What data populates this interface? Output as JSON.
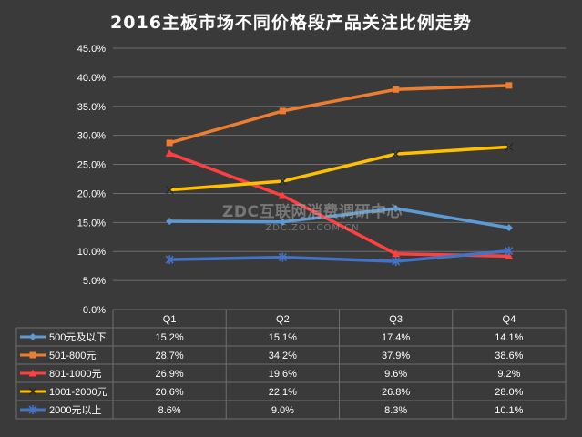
{
  "chart_data": {
    "type": "line",
    "title": "2016主板市场不同价格段产品关注比例走势",
    "categories": [
      "Q1",
      "Q2",
      "Q3",
      "Q4"
    ],
    "ylim": [
      0,
      45
    ],
    "yticks": [
      "0.0%",
      "5.0%",
      "10.0%",
      "15.0%",
      "20.0%",
      "25.0%",
      "30.0%",
      "35.0%",
      "40.0%",
      "45.0%"
    ],
    "grid": true,
    "legend_placement": "bottom-table",
    "series": [
      {
        "name": "500元及以下",
        "values": [
          15.2,
          15.1,
          17.4,
          14.1
        ],
        "labels": [
          "15.2%",
          "15.1%",
          "17.4%",
          "14.1%"
        ],
        "color": "#5b9bd5",
        "marker": "diamond"
      },
      {
        "name": "501-800元",
        "values": [
          28.7,
          34.2,
          37.9,
          38.6
        ],
        "labels": [
          "28.7%",
          "34.2%",
          "37.9%",
          "38.6%"
        ],
        "color": "#ed7d31",
        "marker": "square"
      },
      {
        "name": "801-1000元",
        "values": [
          26.9,
          19.6,
          9.6,
          9.2
        ],
        "labels": [
          "26.9%",
          "19.6%",
          "9.6%",
          "9.2%"
        ],
        "color": "#ff4040",
        "marker": "triangle"
      },
      {
        "name": "1001-2000元",
        "values": [
          20.6,
          22.1,
          26.8,
          28.0
        ],
        "labels": [
          "20.6%",
          "22.1%",
          "26.8%",
          "28.0%"
        ],
        "color": "#ffc000",
        "marker": "x"
      },
      {
        "name": "2000元以上",
        "values": [
          8.6,
          9.0,
          8.3,
          10.1
        ],
        "labels": [
          "8.6%",
          "9.0%",
          "8.3%",
          "10.1%"
        ],
        "color": "#4472c4",
        "marker": "star"
      }
    ]
  },
  "watermark": {
    "main": "ZDC互联网消费调研中心",
    "sub": "ZDC.ZOL.COM.CN"
  }
}
